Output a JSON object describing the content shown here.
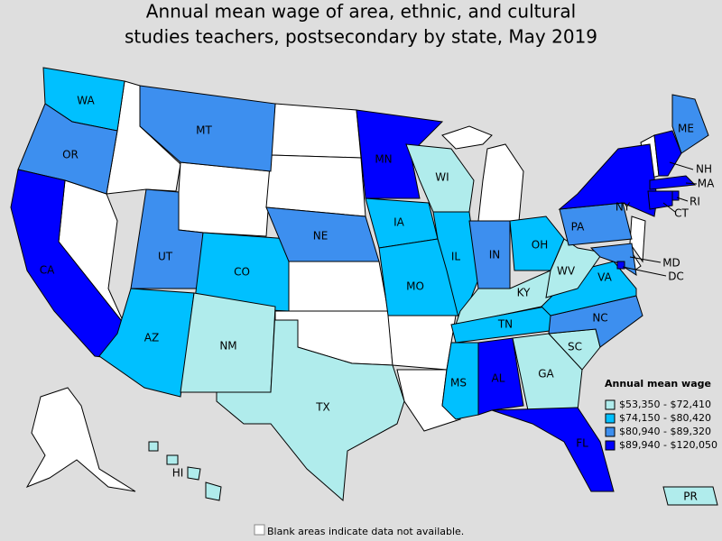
{
  "title_lines": [
    "Annual mean wage of area, ethnic, and cultural",
    "studies teachers, postsecondary by state, May 2019"
  ],
  "legend": {
    "title": "Annual mean wage",
    "items": [
      {
        "label": "$53,350 - $72,410",
        "color": "#b0ecec"
      },
      {
        "label": "$74,150 - $80,420",
        "color": "#00c0ff"
      },
      {
        "label": "$80,940 - $89,320",
        "color": "#3d8fef"
      },
      {
        "label": "$89,940 - $120,050",
        "color": "#0000ff"
      }
    ]
  },
  "states": [
    {
      "label": "WA",
      "color": "#00c0ff"
    },
    {
      "label": "OR",
      "color": "#3d8fef"
    },
    {
      "label": "CA",
      "color": "#0000ff"
    },
    {
      "label": "MT",
      "color": "#3d8fef"
    },
    {
      "label": "UT",
      "color": "#3d8fef"
    },
    {
      "label": "CO",
      "color": "#00c0ff"
    },
    {
      "label": "AZ",
      "color": "#00c0ff"
    },
    {
      "label": "NM",
      "color": "#b0ecec"
    },
    {
      "label": "TX",
      "color": "#b0ecec"
    },
    {
      "label": "MN",
      "color": "#0000ff"
    },
    {
      "label": "NE",
      "color": "#3d8fef"
    },
    {
      "label": "IA",
      "color": "#00c0ff"
    },
    {
      "label": "MO",
      "color": "#00c0ff"
    },
    {
      "label": "WI",
      "color": "#b0ecec"
    },
    {
      "label": "IL",
      "color": "#00c0ff"
    },
    {
      "label": "IN",
      "color": "#3d8fef"
    },
    {
      "label": "OH",
      "color": "#00c0ff"
    },
    {
      "label": "KY",
      "color": "#b0ecec"
    },
    {
      "label": "TN",
      "color": "#00c0ff"
    },
    {
      "label": "MS",
      "color": "#00c0ff"
    },
    {
      "label": "AL",
      "color": "#0000ff"
    },
    {
      "label": "GA",
      "color": "#b0ecec"
    },
    {
      "label": "FL",
      "color": "#0000ff"
    },
    {
      "label": "SC",
      "color": "#b0ecec"
    },
    {
      "label": "NC",
      "color": "#3d8fef"
    },
    {
      "label": "VA",
      "color": "#00c0ff"
    },
    {
      "label": "WV",
      "color": "#b0ecec"
    },
    {
      "label": "PA",
      "color": "#3d8fef"
    },
    {
      "label": "NY",
      "color": "#0000ff"
    },
    {
      "label": "ME",
      "color": "#3d8fef"
    },
    {
      "label": "NH",
      "color": "#0000ff"
    },
    {
      "label": "MA",
      "color": "#0000ff"
    },
    {
      "label": "CT",
      "color": "#0000ff"
    },
    {
      "label": "RI",
      "color": "#0000ff"
    },
    {
      "label": "MD",
      "color": "#3d8fef"
    },
    {
      "label": "DC",
      "color": "#0000ff"
    },
    {
      "label": "HI",
      "color": "#b0ecec"
    },
    {
      "label": "PR",
      "color": "#b0ecec"
    }
  ],
  "footnote": "Blank areas indicate data not available."
}
